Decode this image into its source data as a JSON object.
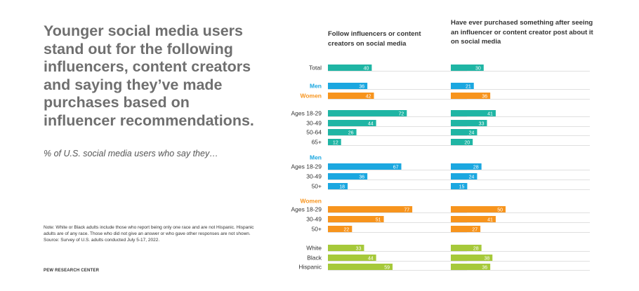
{
  "header": {
    "title": "Younger social media users stand out for the following influencers, content creators and saying they’ve made purchases based on influencer recommendations.",
    "subtitle": "% of U.S. social media users who say they…"
  },
  "footer": {
    "note": "Note: White or Black adults include those who report being only one race and are not Hispanic. Hispanic adults are of any race. Those who did not give an answer or who gave other responses are not shown. Source: Survey of U.S. adults conducted July 5-17, 2022.",
    "source": "PEW RESEARCH CENTER"
  },
  "colors": {
    "teal": "#1fb5a4",
    "blue": "#1ba7e0",
    "orange": "#f7941d",
    "green": "#a6c93a",
    "label_dark": "#333333"
  },
  "chart_data": {
    "type": "bar",
    "orientation": "horizontal",
    "series": [
      {
        "name": "Follow influencers or content creators on social media"
      },
      {
        "name": "Have ever purchased something after seeing an influencer or content creator post about it on social media"
      }
    ],
    "rows": [
      {
        "label": "Total",
        "group": "total",
        "values": [
          40,
          30
        ]
      },
      {
        "label": "Men",
        "group": "men",
        "values": [
          36,
          21
        ],
        "label_color": "blue"
      },
      {
        "label": "Women",
        "group": "women",
        "values": [
          42,
          36
        ],
        "label_color": "orange"
      },
      {
        "label": "Ages 18-29",
        "group": "age",
        "values": [
          72,
          41
        ]
      },
      {
        "label": "30-49",
        "group": "age",
        "values": [
          44,
          33
        ]
      },
      {
        "label": "50-64",
        "group": "age",
        "values": [
          26,
          24
        ]
      },
      {
        "label": "65+",
        "group": "age",
        "values": [
          12,
          20
        ]
      },
      {
        "heading": "Men",
        "label_color": "blue"
      },
      {
        "label": "Ages 18-29",
        "group": "men",
        "values": [
          67,
          28
        ]
      },
      {
        "label": "30-49",
        "group": "men",
        "values": [
          36,
          24
        ]
      },
      {
        "label": "50+",
        "group": "men",
        "values": [
          18,
          15
        ]
      },
      {
        "heading": "Women",
        "label_color": "orange"
      },
      {
        "label": "Ages 18-29",
        "group": "women",
        "values": [
          77,
          50
        ]
      },
      {
        "label": "30-49",
        "group": "women",
        "values": [
          51,
          41
        ]
      },
      {
        "label": "50+",
        "group": "women",
        "values": [
          22,
          27
        ]
      },
      {
        "label": "White",
        "group": "race",
        "values": [
          33,
          28
        ]
      },
      {
        "label": "Black",
        "group": "race",
        "values": [
          44,
          38
        ]
      },
      {
        "label": "Hispanic",
        "group": "race",
        "values": [
          59,
          36
        ]
      }
    ],
    "group_colors": {
      "total": "teal",
      "age": "teal",
      "men": "blue",
      "women": "orange",
      "race": "green"
    },
    "xlim": [
      0,
      100
    ]
  }
}
